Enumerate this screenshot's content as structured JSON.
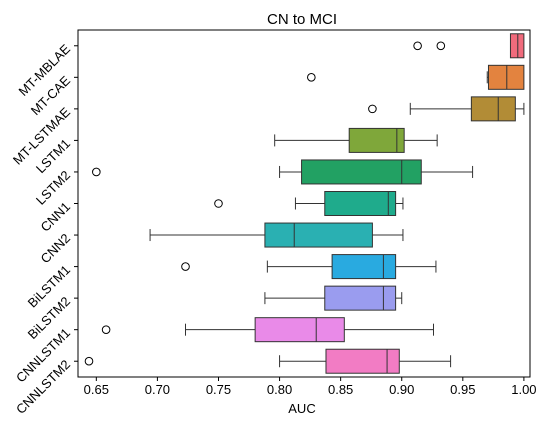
{
  "chart_data": {
    "type": "box",
    "title": "CN to MCI",
    "xlabel": "AUC",
    "ylabel": "",
    "xlim": [
      0.635,
      1.005
    ],
    "xticks": [
      0.65,
      0.7,
      0.75,
      0.8,
      0.85,
      0.9,
      0.95,
      1.0
    ],
    "xtick_labels": [
      "0.65",
      "0.70",
      "0.75",
      "0.80",
      "0.85",
      "0.90",
      "0.95",
      "1.00"
    ],
    "orientation": "horizontal",
    "grid": false,
    "categories": [
      "MT-MBLAE",
      "MT-CAE",
      "MT-LSTMAE",
      "LSTM1",
      "LSTM2",
      "CNN1",
      "CNN2",
      "BiLSTM1",
      "BiLSTM2",
      "CNNLSTM1",
      "CNNLSTM2"
    ],
    "series": [
      {
        "label": "MT-MBLAE",
        "color": "#f06b7c",
        "whisker_low": 0.989,
        "q1": 0.989,
        "median": 0.995,
        "q3": 1.0,
        "whisker_high": 1.0,
        "outliers": [
          0.913,
          0.932
        ]
      },
      {
        "label": "MT-CAE",
        "color": "#e3833f",
        "whisker_low": 0.97,
        "q1": 0.971,
        "median": 0.986,
        "q3": 1.0,
        "whisker_high": 1.0,
        "outliers": [
          0.826
        ]
      },
      {
        "label": "MT-LSTMAE",
        "color": "#b28c36",
        "whisker_low": 0.907,
        "q1": 0.957,
        "median": 0.979,
        "q3": 0.993,
        "whisker_high": 1.0,
        "outliers": [
          0.876
        ]
      },
      {
        "label": "LSTM1",
        "color": "#7fa73a",
        "whisker_low": 0.796,
        "q1": 0.857,
        "median": 0.896,
        "q3": 0.902,
        "whisker_high": 0.929,
        "outliers": []
      },
      {
        "label": "LSTM2",
        "color": "#22a163",
        "whisker_low": 0.8,
        "q1": 0.818,
        "median": 0.9,
        "q3": 0.916,
        "whisker_high": 0.958,
        "outliers": [
          0.65
        ]
      },
      {
        "label": "CNN1",
        "color": "#1fab8c",
        "whisker_low": 0.813,
        "q1": 0.837,
        "median": 0.889,
        "q3": 0.895,
        "whisker_high": 0.901,
        "outliers": [
          0.75
        ]
      },
      {
        "label": "CNN2",
        "color": "#2ab0b2",
        "whisker_low": 0.694,
        "q1": 0.788,
        "median": 0.812,
        "q3": 0.876,
        "whisker_high": 0.901,
        "outliers": []
      },
      {
        "label": "BiLSTM1",
        "color": "#29aae0",
        "whisker_low": 0.79,
        "q1": 0.843,
        "median": 0.885,
        "q3": 0.895,
        "whisker_high": 0.928,
        "outliers": [
          0.723
        ]
      },
      {
        "label": "BiLSTM2",
        "color": "#9a9cef",
        "whisker_low": 0.788,
        "q1": 0.837,
        "median": 0.885,
        "q3": 0.895,
        "whisker_high": 0.9,
        "outliers": []
      },
      {
        "label": "CNNLSTM1",
        "color": "#e98ae8",
        "whisker_low": 0.723,
        "q1": 0.78,
        "median": 0.83,
        "q3": 0.853,
        "whisker_high": 0.926,
        "outliers": [
          0.658
        ]
      },
      {
        "label": "CNNLSTM2",
        "color": "#f27cc4",
        "whisker_low": 0.8,
        "q1": 0.838,
        "median": 0.888,
        "q3": 0.898,
        "whisker_high": 0.94,
        "outliers": [
          0.644
        ]
      }
    ]
  }
}
